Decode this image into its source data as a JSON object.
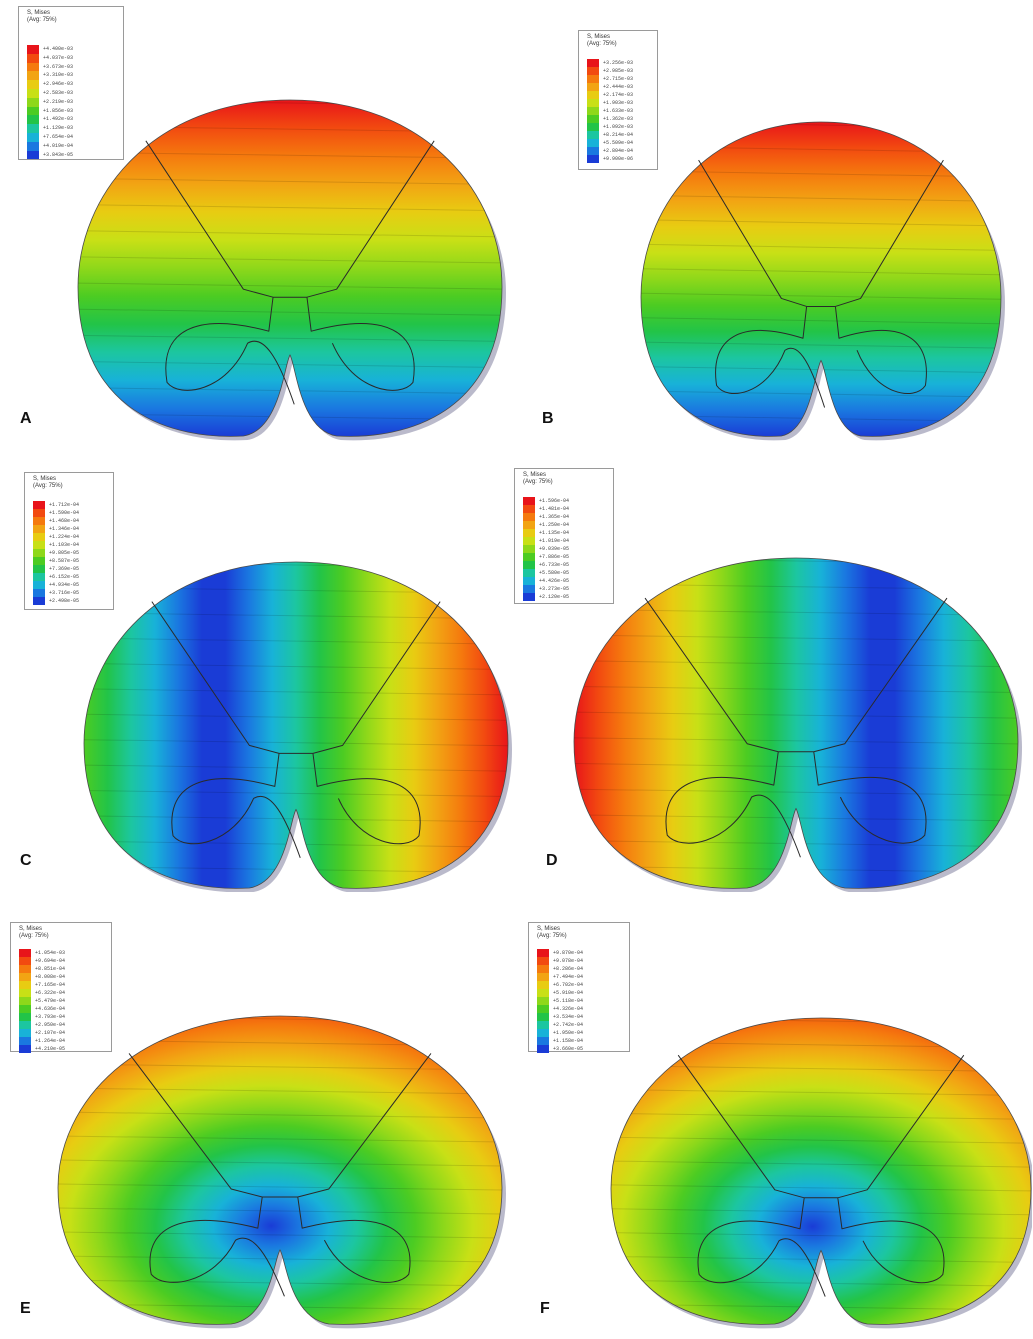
{
  "figure": {
    "panels": [
      {
        "id": "A",
        "label": "A",
        "legend_title": "S, Mises",
        "legend_sub": "(Avg: 75%)",
        "legend_values": [
          "+4.400e-03",
          "+4.037e-03",
          "+3.673e-03",
          "+3.310e-03",
          "+2.946e-03",
          "+2.583e-03",
          "+2.219e-03",
          "+1.856e-03",
          "+1.492e-03",
          "+1.129e-03",
          "+7.654e-04",
          "+4.019e-04",
          "+3.843e-05"
        ],
        "pattern": "vertical-high-top"
      },
      {
        "id": "B",
        "label": "B",
        "legend_title": "S, Mises",
        "legend_sub": "(Avg: 75%)",
        "legend_values": [
          "+3.256e-03",
          "+2.985e-03",
          "+2.715e-03",
          "+2.444e-03",
          "+2.174e-03",
          "+1.903e-03",
          "+1.633e-03",
          "+1.362e-03",
          "+1.092e-03",
          "+8.214e-04",
          "+5.509e-04",
          "+2.804e-04",
          "+9.900e-06"
        ],
        "pattern": "vertical-high-top"
      },
      {
        "id": "C",
        "label": "C",
        "legend_title": "S, Mises",
        "legend_sub": "(Avg: 75%)",
        "legend_values": [
          "+1.712e-04",
          "+1.590e-04",
          "+1.468e-04",
          "+1.346e-04",
          "+1.224e-04",
          "+1.103e-04",
          "+9.805e-05",
          "+8.587e-05",
          "+7.369e-05",
          "+6.152e-05",
          "+4.934e-05",
          "+3.716e-05",
          "+2.498e-05"
        ],
        "pattern": "horizontal-high-right"
      },
      {
        "id": "D",
        "label": "D",
        "legend_title": "S, Mises",
        "legend_sub": "(Avg: 75%)",
        "legend_values": [
          "+1.596e-04",
          "+1.481e-04",
          "+1.365e-04",
          "+1.250e-04",
          "+1.135e-04",
          "+1.019e-04",
          "+9.039e-05",
          "+7.886e-05",
          "+6.733e-05",
          "+5.580e-05",
          "+4.426e-05",
          "+3.273e-05",
          "+2.120e-05"
        ],
        "pattern": "horizontal-high-left"
      },
      {
        "id": "E",
        "label": "E",
        "legend_title": "S, Mises",
        "legend_sub": "(Avg: 75%)",
        "legend_values": [
          "+1.054e-03",
          "+9.694e-04",
          "+8.851e-04",
          "+8.008e-04",
          "+7.165e-04",
          "+6.322e-04",
          "+5.479e-04",
          "+4.636e-04",
          "+3.793e-04",
          "+2.950e-04",
          "+2.107e-04",
          "+1.264e-04",
          "+4.210e-05"
        ],
        "pattern": "radial-low-center"
      },
      {
        "id": "F",
        "label": "F",
        "legend_title": "S, Mises",
        "legend_sub": "(Avg: 75%)",
        "legend_values": [
          "+9.870e-04",
          "+9.078e-04",
          "+8.286e-04",
          "+7.494e-04",
          "+6.702e-04",
          "+5.910e-04",
          "+5.118e-04",
          "+4.326e-04",
          "+3.534e-04",
          "+2.742e-04",
          "+1.950e-04",
          "+1.158e-04",
          "+3.660e-05"
        ],
        "pattern": "radial-low-center"
      }
    ],
    "colormap": [
      "#e8141a",
      "#f24a10",
      "#f57a0e",
      "#f2a413",
      "#e8cc12",
      "#c8e016",
      "#8ed81a",
      "#4ccc22",
      "#22c448",
      "#1cc6a0",
      "#18b2d8",
      "#1a78e0",
      "#1a3cd6"
    ]
  }
}
